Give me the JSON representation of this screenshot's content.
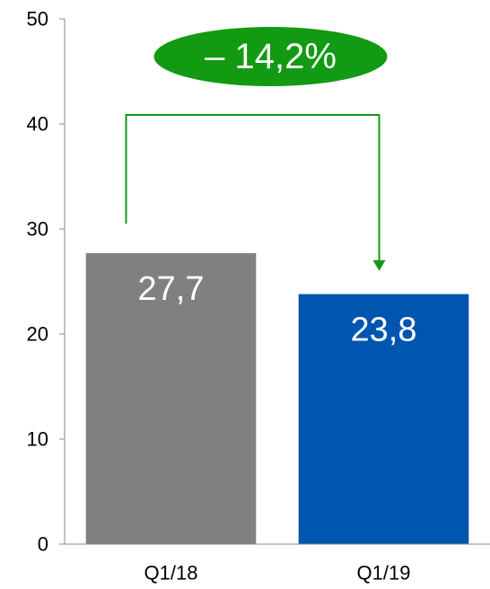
{
  "chart_data": {
    "type": "bar",
    "categories": [
      "Q1/18",
      "Q1/19"
    ],
    "values": [
      27.7,
      23.8
    ],
    "value_labels": [
      "27,7",
      "23,8"
    ],
    "bar_colors": [
      "#808080",
      "#0055b0"
    ],
    "ylim": [
      0,
      50
    ],
    "yticks": [
      0,
      10,
      20,
      30,
      40,
      50
    ],
    "grid": false,
    "change": {
      "label": "– 14,2%",
      "color": "#129a12",
      "from": "Q1/18",
      "to": "Q1/19"
    }
  }
}
